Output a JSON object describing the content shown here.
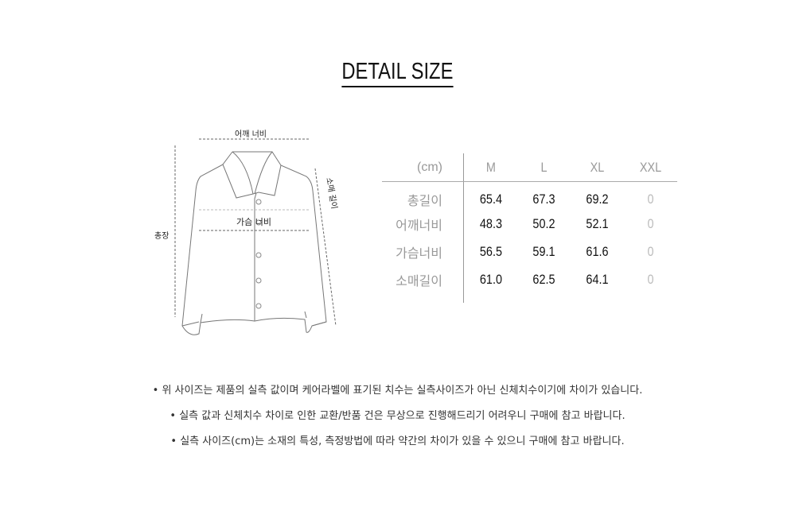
{
  "title": "DETAIL SIZE",
  "diagram": {
    "shoulder_label": "어깨 너비",
    "chest_label": "가슴 너비",
    "length_label": "총장",
    "sleeve_label": "소매 길이"
  },
  "table": {
    "unit": "(cm)",
    "sizes": [
      "M",
      "L",
      "XL",
      "XXL"
    ],
    "rows": [
      {
        "label": "총길이",
        "values": [
          "65.4",
          "67.3",
          "69.2",
          "0"
        ]
      },
      {
        "label": "어깨너비",
        "values": [
          "48.3",
          "50.2",
          "52.1",
          "0"
        ]
      },
      {
        "label": "가슴너비",
        "values": [
          "56.5",
          "59.1",
          "61.6",
          "0"
        ]
      },
      {
        "label": "소매길이",
        "values": [
          "61.0",
          "62.5",
          "64.1",
          "0"
        ]
      }
    ]
  },
  "notes": [
    "위 사이즈는 제품의 실측 값이며 케어라벨에 표기된 치수는 실측사이즈가 아닌  신체치수이기에 차이가 있습니다.",
    "실측 값과 신체치수 차이로 인한 교환/반품 건은 무상으로 진행해드리기 어려우니 구매에 참고 바랍니다.",
    "실측 사이즈(cm)는 소재의 특성, 측정방법에 따라 약간의 차이가 있을 수 있으니 구매에 참고 바랍니다."
  ]
}
